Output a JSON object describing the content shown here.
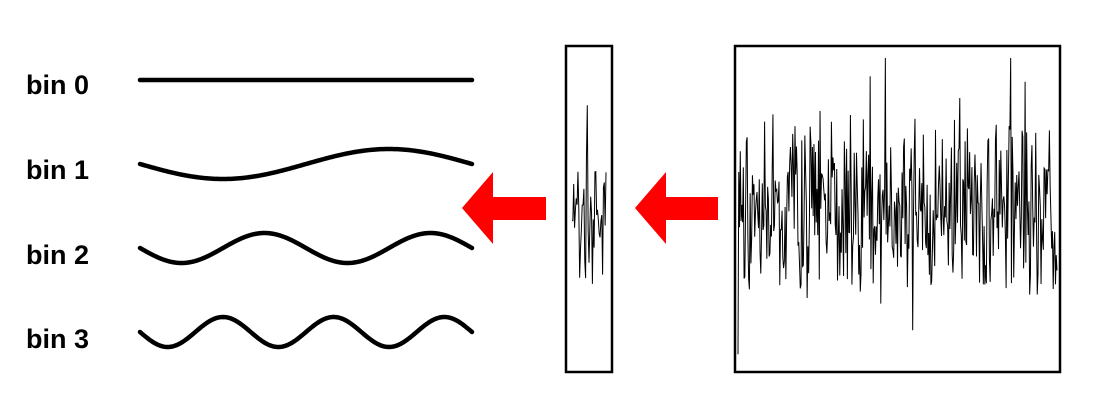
{
  "bins": [
    {
      "label": "bin 0",
      "cycles": 0
    },
    {
      "label": "bin 1",
      "cycles": 1
    },
    {
      "label": "bin 2",
      "cycles": 2
    },
    {
      "label": "bin 3",
      "cycles": 3
    }
  ],
  "colors": {
    "arrow": "#ff0000",
    "stroke": "#000000",
    "background": "#ffffff"
  },
  "icons": [
    "left-arrow-icon",
    "left-arrow-icon"
  ]
}
